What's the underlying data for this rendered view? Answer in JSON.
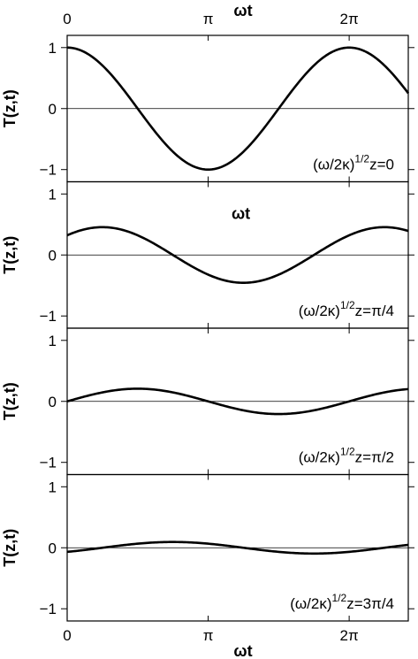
{
  "chart_data": {
    "type": "line",
    "x_axis_label": "ωt",
    "x_ticks": [
      {
        "value": 0,
        "label": "0"
      },
      {
        "value": 3.14159,
        "label": "π"
      },
      {
        "value": 6.28319,
        "label": "2π"
      }
    ],
    "xlim": [
      0,
      7.6
    ],
    "ylim": [
      -1.2,
      1.2
    ],
    "y_ticks": [
      {
        "value": -1,
        "label": "−1"
      },
      {
        "value": 0,
        "label": "0"
      },
      {
        "value": 1,
        "label": "1"
      }
    ],
    "y_axis_label": "T(z,t)",
    "grid": false,
    "panels": [
      {
        "depth": 0,
        "annotation": {
          "prefix": "(ω/2κ)",
          "sup": "1/2",
          "suffix": "z=0"
        },
        "inner_axis_label": ""
      },
      {
        "depth": 0.7854,
        "annotation": {
          "prefix": "(ω/2κ)",
          "sup": "1/2",
          "suffix": "z=π/4"
        },
        "inner_axis_label": "ωt"
      },
      {
        "depth": 1.5708,
        "annotation": {
          "prefix": "(ω/2κ)",
          "sup": "1/2",
          "suffix": "z=π/2"
        },
        "inner_axis_label": ""
      },
      {
        "depth": 2.3562,
        "annotation": {
          "prefix": "(ω/2κ)",
          "sup": "1/2",
          "suffix": "z=3π/4"
        },
        "inner_axis_label": ""
      }
    ]
  }
}
